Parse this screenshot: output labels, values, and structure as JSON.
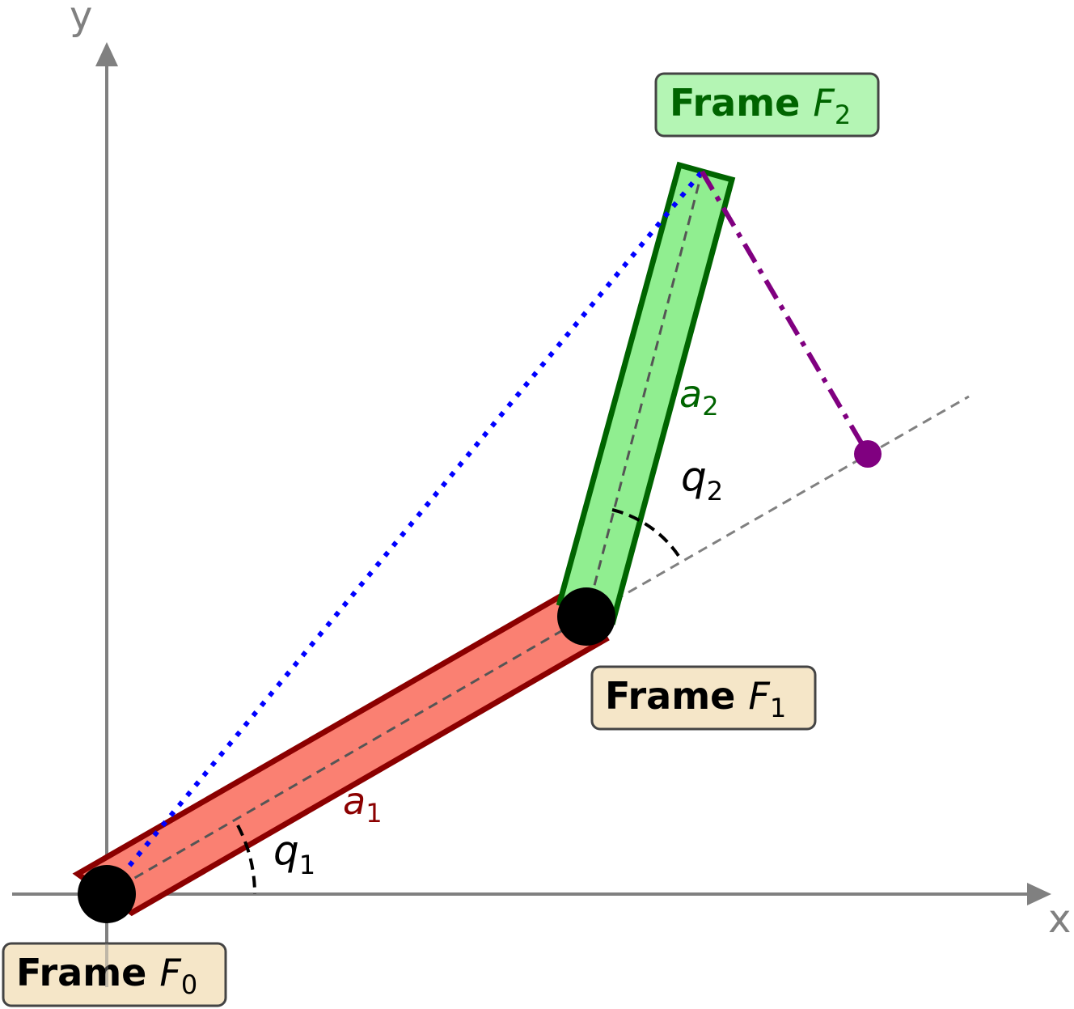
{
  "axes": {
    "x_label": "x",
    "y_label": "y"
  },
  "frames": [
    {
      "id": "f0",
      "prefix": "Frame ",
      "var": "F",
      "sub": "0"
    },
    {
      "id": "f1",
      "prefix": "Frame ",
      "var": "F",
      "sub": "1"
    },
    {
      "id": "f2",
      "prefix": "Frame ",
      "var": "F",
      "sub": "2"
    }
  ],
  "links": {
    "link1": {
      "var": "a",
      "sub": "1"
    },
    "link2": {
      "var": "a",
      "sub": "2"
    }
  },
  "angles": {
    "q1": {
      "var": "q",
      "sub": "1"
    },
    "q2": {
      "var": "q",
      "sub": "2"
    }
  },
  "colors": {
    "axis": "#808080",
    "link1_fill": "#fa8072",
    "link1_stroke": "#8b0000",
    "link2_fill": "#90ee90",
    "link2_stroke": "#006400",
    "reach": "#0000ff",
    "projection": "#800080",
    "frame_box_fill": "#f5e6c8",
    "frame2_box_fill": "#b4f5b4",
    "frame2_text": "#006400"
  }
}
